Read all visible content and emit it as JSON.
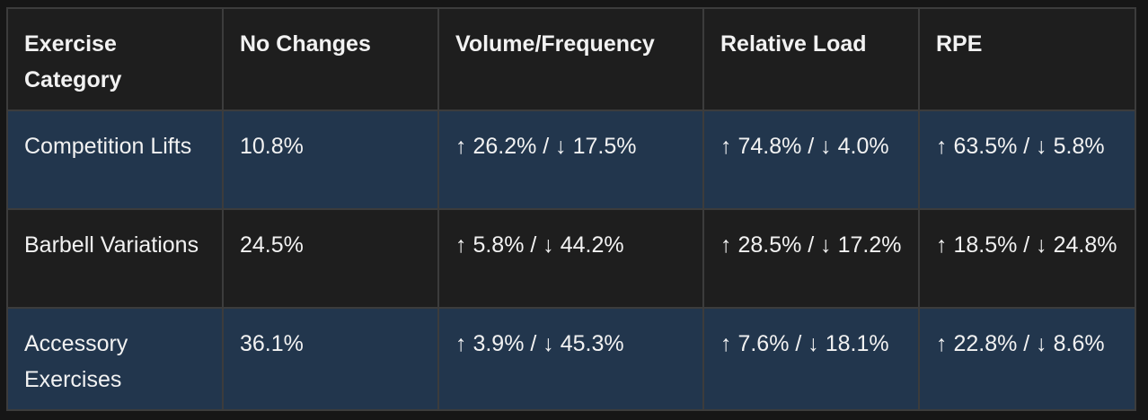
{
  "table": {
    "headers": [
      "Exercise Category",
      "No Changes",
      "Volume/Frequency",
      "Relative Load",
      "RPE"
    ],
    "rows": [
      [
        "Competition Lifts",
        "10.8%",
        "↑ 26.2% / ↓ 17.5%",
        "↑ 74.8% / ↓ 4.0%",
        "↑ 63.5% / ↓ 5.8%"
      ],
      [
        "Barbell Variations",
        "24.5%",
        "↑ 5.8% / ↓ 44.2%",
        "↑ 28.5% / ↓ 17.2%",
        "↑ 18.5% / ↓ 24.8%"
      ],
      [
        "Accessory Exercises",
        "36.1%",
        "↑ 3.9% / ↓ 45.3%",
        "↑ 7.6% / ↓ 18.1%",
        "↑ 22.8% / ↓ 8.6%"
      ]
    ]
  },
  "colors": {
    "page_background": "#161616",
    "header_background": "#1e1e1e",
    "shaded_row_background": "#22364d",
    "plain_row_background": "#1e1e1e",
    "border": "#3c3c3c",
    "text": "#f2f2f2"
  }
}
